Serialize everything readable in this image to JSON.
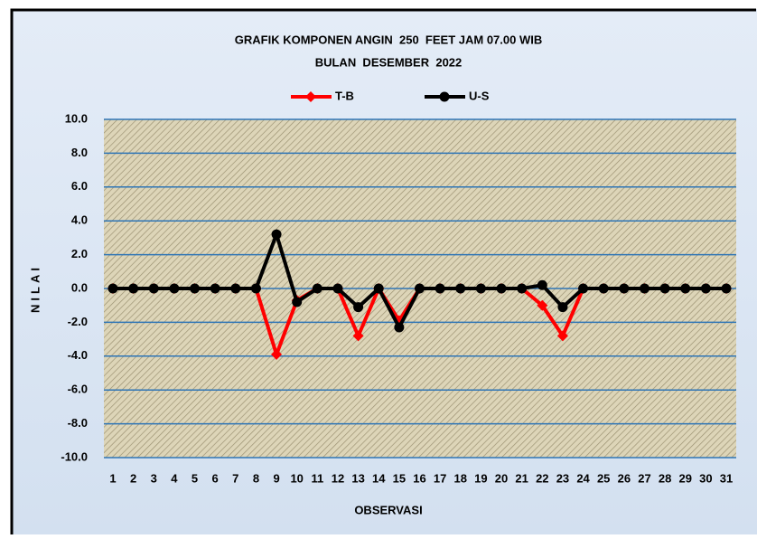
{
  "chart_data": {
    "type": "line",
    "title": "GRAFIK KOMPONEN ANGIN  250  FEET JAM 07.00 WIB",
    "subtitle": "BULAN  DESEMBER  2022",
    "x_label": "OBSERVASI",
    "y_label": "NILAI",
    "categories": [
      "1",
      "2",
      "3",
      "4",
      "5",
      "6",
      "7",
      "8",
      "9",
      "10",
      "11",
      "12",
      "13",
      "14",
      "15",
      "16",
      "17",
      "18",
      "19",
      "20",
      "21",
      "22",
      "23",
      "24",
      "25",
      "26",
      "27",
      "28",
      "29",
      "30",
      "31"
    ],
    "series": [
      {
        "name": "T-B",
        "color": "#ff0000",
        "values": [
          0,
          0,
          0,
          0,
          0,
          0,
          0,
          0,
          -3.9,
          -0.7,
          0,
          0,
          -2.8,
          0,
          -1.9,
          0,
          0,
          0,
          0,
          0,
          0,
          -1.0,
          -2.8,
          0,
          0,
          0,
          0,
          0,
          0,
          0,
          0
        ]
      },
      {
        "name": "U-S",
        "color": "#000000",
        "values": [
          0,
          0,
          0,
          0,
          0,
          0,
          0,
          0,
          3.2,
          -0.8,
          0,
          0,
          -1.1,
          0,
          -2.3,
          0,
          0,
          0,
          0,
          0,
          0,
          0.2,
          -1.1,
          0,
          0,
          0,
          0,
          0,
          0,
          0,
          0
        ]
      }
    ],
    "ylim": [
      -10,
      10
    ],
    "yticks": [
      {
        "value": -10,
        "label": "-10.0"
      },
      {
        "value": -8,
        "label": "-8.0"
      },
      {
        "value": -6,
        "label": "-6.0"
      },
      {
        "value": -4,
        "label": "-4.0"
      },
      {
        "value": -2,
        "label": "-2.0"
      },
      {
        "value": 0,
        "label": "0.0"
      },
      {
        "value": 2,
        "label": "2.0"
      },
      {
        "value": 4,
        "label": "4.0"
      },
      {
        "value": 6,
        "label": "6.0"
      },
      {
        "value": 8,
        "label": "8.0"
      },
      {
        "value": 10,
        "label": "10.0"
      }
    ],
    "grid": true,
    "legend": "top"
  }
}
